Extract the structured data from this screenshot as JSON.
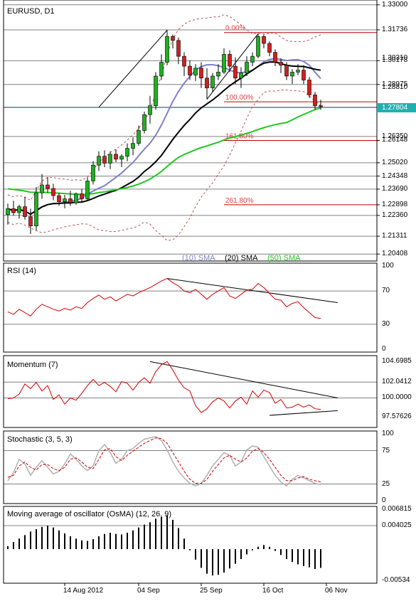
{
  "chart_data": {
    "type": "candlestick",
    "symbol_label": "EURUSD, D1",
    "x_axis_labels": [
      "14 Aug 2012",
      "04 Sep",
      "25 Sep",
      "16 Oct",
      "06 Nov"
    ],
    "main_axis": {
      "ylim": [
        1.202,
        1.331
      ],
      "tick_labels": [
        "1.33000",
        "1.31736",
        "1.30178",
        "1.28975",
        "1.27804",
        "1.26148",
        "1.25020",
        "1.24348",
        "1.23690",
        "1.22898",
        "1.22360",
        "1.21311",
        "1.20408"
      ],
      "tick_values": [
        1.33,
        1.31736,
        1.30178,
        1.28975,
        1.27804,
        1.26148,
        1.2502,
        1.24348,
        1.2369,
        1.22898,
        1.2236,
        1.21311,
        1.20408
      ],
      "partial_tick_labels": [
        "1.30310",
        "1.28810",
        "1.27830",
        "1.26350"
      ],
      "partial_tick_values": [
        1.3031,
        1.2881,
        1.2783,
        1.2635
      ],
      "current_price": 1.27804
    },
    "level_lines": [
      1.33,
      1.31736,
      1.30178,
      1.28975,
      1.2783,
      1.27804,
      1.2635,
      1.2502,
      1.24348,
      1.2369,
      1.2236,
      1.21311,
      1.20408
    ],
    "fibonacci": {
      "levels": [
        {
          "label": "0.00%",
          "value": 1.316
        },
        {
          "label": "100.00%",
          "value": 1.281
        },
        {
          "label": "161.80%",
          "value": 1.26148
        },
        {
          "label": "261.80%",
          "value": 1.22898
        }
      ]
    },
    "trendlines_main": [
      {
        "from": [
          16,
          1.2783
        ],
        "to": [
          28,
          1.3172
        ]
      },
      {
        "from": [
          35,
          1.2823
        ],
        "to": [
          44,
          1.3154
        ]
      }
    ],
    "candles": [
      [
        1.224,
        1.2296,
        1.219,
        1.227
      ],
      [
        1.227,
        1.231,
        1.2235,
        1.225
      ],
      [
        1.225,
        1.229,
        1.222,
        1.228
      ],
      [
        1.228,
        1.233,
        1.2215,
        1.223
      ],
      [
        1.223,
        1.227,
        1.2142,
        1.2183
      ],
      [
        1.2183,
        1.238,
        1.216,
        1.235
      ],
      [
        1.235,
        1.2445,
        1.232,
        1.239
      ],
      [
        1.239,
        1.243,
        1.235,
        1.2372
      ],
      [
        1.2372,
        1.2396,
        1.2312,
        1.2336
      ],
      [
        1.2336,
        1.235,
        1.2285,
        1.2305
      ],
      [
        1.2305,
        1.234,
        1.2272,
        1.232
      ],
      [
        1.232,
        1.236,
        1.2285,
        1.23
      ],
      [
        1.23,
        1.2352,
        1.229,
        1.2345
      ],
      [
        1.2345,
        1.237,
        1.23,
        1.232
      ],
      [
        1.232,
        1.2428,
        1.231,
        1.241
      ],
      [
        1.241,
        1.251,
        1.2392,
        1.249
      ],
      [
        1.249,
        1.256,
        1.246,
        1.2535
      ],
      [
        1.2535,
        1.2565,
        1.248,
        1.25
      ],
      [
        1.25,
        1.256,
        1.247,
        1.2545
      ],
      [
        1.2545,
        1.257,
        1.2505,
        1.252
      ],
      [
        1.252,
        1.2545,
        1.248,
        1.2535
      ],
      [
        1.2535,
        1.26,
        1.251,
        1.2575
      ],
      [
        1.2575,
        1.263,
        1.254,
        1.26
      ],
      [
        1.26,
        1.269,
        1.2588,
        1.2665
      ],
      [
        1.2665,
        1.276,
        1.265,
        1.2745
      ],
      [
        1.2745,
        1.284,
        1.27,
        1.279
      ],
      [
        1.279,
        1.296,
        1.277,
        1.294
      ],
      [
        1.294,
        1.305,
        1.292,
        1.301
      ],
      [
        1.301,
        1.3172,
        1.2995,
        1.314
      ],
      [
        1.314,
        1.315,
        1.308,
        1.312
      ],
      [
        1.312,
        1.3135,
        1.3,
        1.304
      ],
      [
        1.304,
        1.306,
        1.294,
        1.299
      ],
      [
        1.299,
        1.302,
        1.292,
        1.2945
      ],
      [
        1.2945,
        1.3,
        1.2915,
        1.298
      ],
      [
        1.298,
        1.301,
        1.288,
        1.293
      ],
      [
        1.293,
        1.298,
        1.2823,
        1.288
      ],
      [
        1.288,
        1.2955,
        1.286,
        1.294
      ],
      [
        1.294,
        1.3,
        1.292,
        1.296
      ],
      [
        1.296,
        1.308,
        1.295,
        1.305
      ],
      [
        1.305,
        1.307,
        1.296,
        1.299
      ],
      [
        1.299,
        1.3035,
        1.29,
        1.293
      ],
      [
        1.293,
        1.2985,
        1.288,
        1.2955
      ],
      [
        1.2955,
        1.304,
        1.294,
        1.301
      ],
      [
        1.301,
        1.306,
        1.299,
        1.304
      ],
      [
        1.304,
        1.3154,
        1.303,
        1.314
      ],
      [
        1.314,
        1.315,
        1.308,
        1.3105
      ],
      [
        1.3105,
        1.3115,
        1.304,
        1.306
      ],
      [
        1.306,
        1.3075,
        1.299,
        1.301
      ],
      [
        1.301,
        1.303,
        1.2955,
        1.2995
      ],
      [
        1.2995,
        1.301,
        1.292,
        1.294
      ],
      [
        1.294,
        1.2975,
        1.29,
        1.296
      ],
      [
        1.296,
        1.3,
        1.2945,
        1.297
      ],
      [
        1.297,
        1.2995,
        1.29,
        1.292
      ],
      [
        1.292,
        1.2935,
        1.283,
        1.2845
      ],
      [
        1.2845,
        1.286,
        1.277,
        1.279
      ],
      [
        1.279,
        1.282,
        1.277,
        1.2785
      ]
    ],
    "sma_series": [
      {
        "name": "(10) SMA",
        "period": 10,
        "color": "#8080c8"
      },
      {
        "name": "(20) SMA",
        "period": 20,
        "color": "#000000"
      },
      {
        "name": "(50) SMA",
        "period": 50,
        "color": "#20c820"
      }
    ],
    "bollinger": {
      "period": 20,
      "deviations": 2,
      "color": "#c05050"
    },
    "rsi": {
      "label": "RSI (14)",
      "ylim": [
        0,
        100
      ],
      "tick_labels": [
        "100",
        "70",
        "30",
        "0"
      ],
      "tick_values": [
        100,
        70,
        30,
        0
      ],
      "level_lines": [
        70,
        30
      ],
      "values": [
        45,
        42,
        48,
        44,
        40,
        48,
        54,
        51,
        48,
        46,
        49,
        47,
        51,
        49,
        56,
        61,
        65,
        60,
        63,
        58,
        62,
        66,
        64,
        68,
        71,
        74,
        78,
        82,
        85,
        80,
        76,
        70,
        68,
        72,
        66,
        60,
        66,
        70,
        74,
        64,
        61,
        66,
        71,
        72,
        79,
        74,
        67,
        60,
        59,
        51,
        55,
        57,
        50,
        44,
        38,
        37
      ],
      "trendline": {
        "from": [
          28,
          85
        ],
        "to": [
          58,
          56
        ]
      }
    },
    "momentum": {
      "label": "Momentum (7)",
      "ylim": [
        96.55,
        105.1
      ],
      "tick_labels": [
        "104.6985",
        "102.0412",
        "100.0000",
        "97.57626"
      ],
      "tick_values": [
        104.6985,
        102.0412,
        100.0,
        97.57626
      ],
      "level_lines": [
        102.0412,
        100.0
      ],
      "values": [
        99.9,
        100.0,
        100.5,
        101.8,
        101.2,
        102.0,
        100.9,
        101.6,
        99.8,
        100.4,
        99.2,
        100.0,
        99.7,
        100.6,
        101.6,
        102.4,
        101.6,
        102.0,
        101.5,
        100.8,
        102.1,
        101.9,
        101.0,
        102.0,
        102.6,
        101.9,
        103.4,
        104.3,
        104.7,
        103.6,
        102.3,
        101.3,
        100.9,
        99.0,
        98.1,
        98.6,
        99.5,
        100.0,
        99.6,
        98.7,
        99.6,
        100.1,
        99.2,
        100.9,
        100.1,
        101.0,
        100.7,
        99.3,
        99.8,
        98.7,
        98.8,
        99.2,
        98.8,
        99.1,
        98.6,
        98.5
      ],
      "trendlines": [
        {
          "from": [
            25,
            104.7
          ],
          "to": [
            58,
            100.0
          ]
        },
        {
          "from": [
            46,
            97.75
          ],
          "to": [
            58,
            98.35
          ]
        }
      ]
    },
    "stochastic": {
      "label": "Stochastic (3, 5, 3)",
      "ylim": [
        0,
        100
      ],
      "tick_labels": [
        "100",
        "75",
        "25",
        "0"
      ],
      "tick_values": [
        100,
        75,
        25,
        0
      ],
      "level_lines": [
        75,
        25
      ],
      "main": [
        30,
        42,
        62,
        55,
        38,
        50,
        60,
        50,
        40,
        44,
        55,
        70,
        62,
        52,
        45,
        52,
        75,
        84,
        72,
        56,
        62,
        75,
        78,
        86,
        92,
        94,
        96,
        90,
        76,
        58,
        44,
        34,
        26,
        22,
        26,
        38,
        52,
        62,
        72,
        68,
        52,
        58,
        76,
        82,
        80,
        66,
        52,
        38,
        28,
        22,
        32,
        38,
        34,
        30,
        26,
        24
      ],
      "signal": [
        35,
        38,
        52,
        58,
        50,
        46,
        54,
        54,
        48,
        45,
        50,
        62,
        64,
        58,
        50,
        48,
        62,
        76,
        78,
        66,
        60,
        68,
        74,
        80,
        86,
        90,
        94,
        93,
        86,
        72,
        58,
        44,
        32,
        26,
        26,
        32,
        44,
        54,
        64,
        68,
        62,
        58,
        64,
        74,
        78,
        72,
        62,
        50,
        38,
        30,
        30,
        34,
        36,
        32,
        30,
        28
      ]
    },
    "osma": {
      "label": "Moving average of oscillator (OsMA) (12, 26, 9)",
      "ylim": [
        -0.00534,
        0.006815
      ],
      "tick_labels": [
        "0.006815",
        "0.004025",
        "-0.00534"
      ],
      "tick_values": [
        0.006815,
        0.004025,
        -0.00534
      ],
      "level_lines": [
        0.004025
      ],
      "values": [
        0.0005,
        0.0012,
        0.0018,
        0.0024,
        0.003,
        0.0034,
        0.0038,
        0.004,
        0.0037,
        0.0032,
        0.0027,
        0.0022,
        0.0018,
        0.0015,
        0.0014,
        0.0017,
        0.0022,
        0.0026,
        0.0028,
        0.0026,
        0.0025,
        0.0028,
        0.0032,
        0.0037,
        0.0042,
        0.0046,
        0.0052,
        0.0055,
        0.0058,
        0.005,
        0.0036,
        0.0018,
        -0.0002,
        -0.0018,
        -0.0032,
        -0.0042,
        -0.0045,
        -0.0044,
        -0.004,
        -0.0033,
        -0.0025,
        -0.0017,
        -0.0009,
        -0.0002,
        0.0004,
        0.0007,
        0.0004,
        -0.0003,
        -0.001,
        -0.0017,
        -0.0022,
        -0.0026,
        -0.0029,
        -0.0031,
        -0.0034,
        -0.0032
      ]
    }
  }
}
